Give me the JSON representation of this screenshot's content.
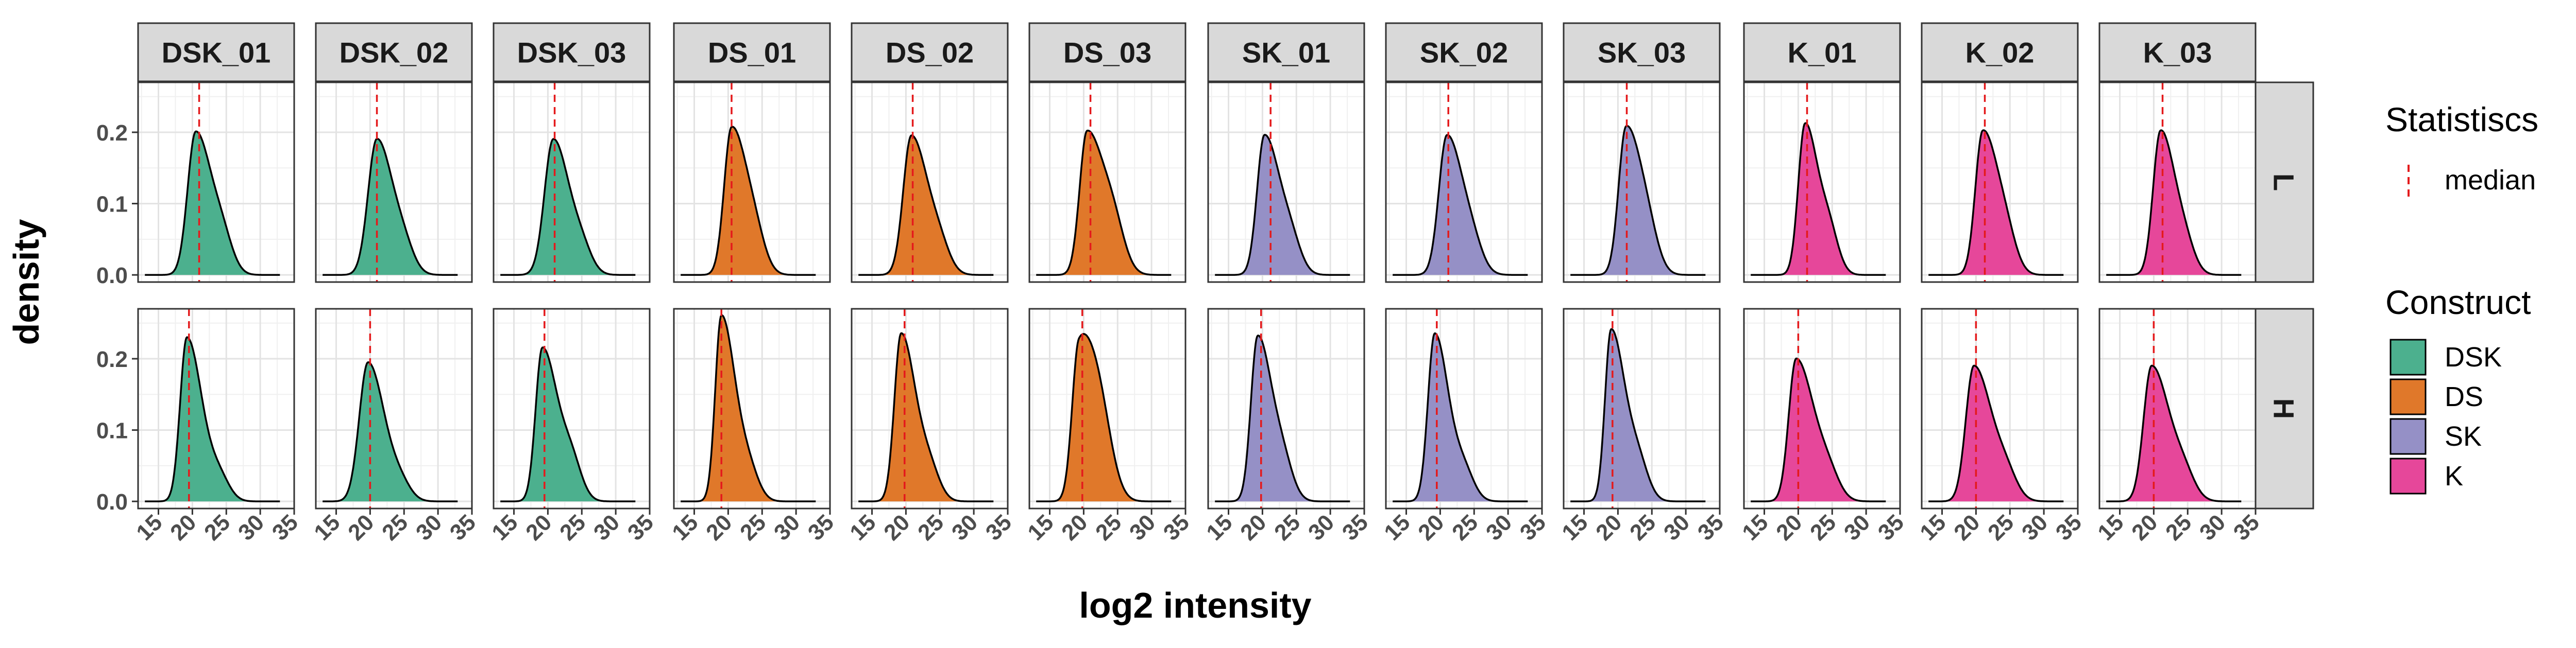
{
  "chart_data": {
    "type": "area",
    "facet_columns": [
      "DSK_01",
      "DSK_02",
      "DSK_03",
      "DS_01",
      "DS_02",
      "DS_03",
      "SK_01",
      "SK_02",
      "SK_03",
      "K_01",
      "K_02",
      "K_03"
    ],
    "facet_rows": [
      "L",
      "H"
    ],
    "column_construct": [
      "DSK",
      "DSK",
      "DSK",
      "DS",
      "DS",
      "DS",
      "SK",
      "SK",
      "SK",
      "K",
      "K",
      "K"
    ],
    "xlabel": "log2 intensity",
    "ylabel": "density",
    "xlim": [
      12,
      35
    ],
    "ylim": [
      -0.01,
      0.27
    ],
    "x_ticks": [
      15,
      20,
      25,
      30,
      35
    ],
    "y_ticks": [
      0.0,
      0.1,
      0.2
    ],
    "y_tick_labels": [
      "0.0",
      "0.1",
      "0.2"
    ],
    "x_tick_labels": [
      "15",
      "20",
      "25",
      "30",
      "35"
    ],
    "grid": true,
    "legend_position": "right",
    "legends": [
      {
        "title": "Statistiscs",
        "entries": [
          {
            "label": "median",
            "style": "dashed-line",
            "color": "#e41a1c"
          }
        ]
      },
      {
        "title": "Construct",
        "entries": [
          {
            "label": "DSK",
            "color": "#4cb08e"
          },
          {
            "label": "DS",
            "color": "#e0782a"
          },
          {
            "label": "SK",
            "color": "#9590c6"
          },
          {
            "label": "K",
            "color": "#e6479a"
          }
        ]
      }
    ],
    "colors": {
      "DSK": "#4cb08e",
      "DS": "#e0782a",
      "SK": "#9590c6",
      "K": "#e6479a",
      "median": "#e41a1c"
    },
    "panels": {
      "L": [
        {
          "median": 21.0,
          "peak_x": 20.5,
          "peak_y": 0.2,
          "sd_left": 1.2,
          "sd_right": 2.3,
          "shoulder": [
            24.5,
            0.04,
            1.5
          ]
        },
        {
          "median": 21.0,
          "peak_x": 21.0,
          "peak_y": 0.19,
          "sd_left": 1.3,
          "sd_right": 2.3,
          "shoulder": [
            25.0,
            0.03,
            1.5
          ]
        },
        {
          "median": 21.0,
          "peak_x": 20.8,
          "peak_y": 0.19,
          "sd_left": 1.3,
          "sd_right": 2.3,
          "shoulder": [
            25.0,
            0.03,
            1.5
          ]
        },
        {
          "median": 20.5,
          "peak_x": 20.5,
          "peak_y": 0.205,
          "sd_left": 1.1,
          "sd_right": 2.2,
          "shoulder": [
            24.0,
            0.04,
            1.5
          ]
        },
        {
          "median": 21.0,
          "peak_x": 20.8,
          "peak_y": 0.195,
          "sd_left": 1.2,
          "sd_right": 2.4,
          "shoulder": [
            25.0,
            0.03,
            1.5
          ]
        },
        {
          "median": 21.0,
          "peak_x": 20.5,
          "peak_y": 0.2,
          "sd_left": 1.1,
          "sd_right": 2.5,
          "shoulder": [
            24.5,
            0.05,
            1.6
          ]
        },
        {
          "median": 21.2,
          "peak_x": 20.3,
          "peak_y": 0.195,
          "sd_left": 1.1,
          "sd_right": 2.2,
          "shoulder": [
            24.2,
            0.04,
            1.5
          ]
        },
        {
          "median": 21.2,
          "peak_x": 21.0,
          "peak_y": 0.195,
          "sd_left": 1.2,
          "sd_right": 2.3,
          "shoulder": [
            24.8,
            0.03,
            1.5
          ]
        },
        {
          "median": 21.3,
          "peak_x": 21.2,
          "peak_y": 0.205,
          "sd_left": 1.1,
          "sd_right": 2.2,
          "shoulder": [
            24.5,
            0.04,
            1.5
          ]
        },
        {
          "median": 21.3,
          "peak_x": 21.0,
          "peak_y": 0.21,
          "sd_left": 1.0,
          "sd_right": 1.8,
          "shoulder": [
            24.5,
            0.06,
            1.4
          ]
        },
        {
          "median": 21.3,
          "peak_x": 21.0,
          "peak_y": 0.2,
          "sd_left": 1.1,
          "sd_right": 2.2,
          "shoulder": [
            24.5,
            0.04,
            1.5
          ]
        },
        {
          "median": 21.3,
          "peak_x": 21.0,
          "peak_y": 0.2,
          "sd_left": 1.1,
          "sd_right": 2.0,
          "shoulder": [
            24.5,
            0.04,
            1.5
          ]
        }
      ],
      "H": [
        {
          "median": 19.5,
          "peak_x": 19.2,
          "peak_y": 0.23,
          "sd_left": 1.0,
          "sd_right": 2.2,
          "shoulder": [
            24.0,
            0.03,
            1.5
          ]
        },
        {
          "median": 20.0,
          "peak_x": 19.7,
          "peak_y": 0.195,
          "sd_left": 1.3,
          "sd_right": 2.4,
          "shoulder": [
            24.5,
            0.02,
            1.5
          ]
        },
        {
          "median": 19.5,
          "peak_x": 19.2,
          "peak_y": 0.215,
          "sd_left": 1.0,
          "sd_right": 2.2,
          "shoulder": [
            23.5,
            0.05,
            1.5
          ]
        },
        {
          "median": 19.0,
          "peak_x": 19.0,
          "peak_y": 0.26,
          "sd_left": 0.9,
          "sd_right": 2.0,
          "shoulder": [
            23.0,
            0.04,
            1.5
          ]
        },
        {
          "median": 19.8,
          "peak_x": 19.3,
          "peak_y": 0.235,
          "sd_left": 1.0,
          "sd_right": 2.1,
          "shoulder": [
            23.5,
            0.04,
            1.5
          ]
        },
        {
          "median": 19.8,
          "peak_x": 19.3,
          "peak_y": 0.21,
          "sd_left": 1.0,
          "sd_right": 2.3,
          "shoulder": [
            22.5,
            0.09,
            1.8
          ]
        },
        {
          "median": 19.8,
          "peak_x": 19.3,
          "peak_y": 0.23,
          "sd_left": 1.0,
          "sd_right": 2.0,
          "shoulder": [
            23.0,
            0.05,
            1.5
          ]
        },
        {
          "median": 19.5,
          "peak_x": 19.2,
          "peak_y": 0.235,
          "sd_left": 1.0,
          "sd_right": 2.0,
          "shoulder": [
            23.5,
            0.04,
            1.5
          ]
        },
        {
          "median": 19.2,
          "peak_x": 19.0,
          "peak_y": 0.24,
          "sd_left": 0.9,
          "sd_right": 2.0,
          "shoulder": [
            23.0,
            0.05,
            1.5
          ]
        },
        {
          "median": 20.0,
          "peak_x": 19.7,
          "peak_y": 0.2,
          "sd_left": 1.1,
          "sd_right": 2.6,
          "shoulder": [
            24.5,
            0.03,
            1.6
          ]
        },
        {
          "median": 20.0,
          "peak_x": 19.7,
          "peak_y": 0.19,
          "sd_left": 1.2,
          "sd_right": 2.6,
          "shoulder": [
            24.5,
            0.03,
            1.6
          ]
        },
        {
          "median": 20.0,
          "peak_x": 19.7,
          "peak_y": 0.19,
          "sd_left": 1.2,
          "sd_right": 2.6,
          "shoulder": [
            24.5,
            0.03,
            1.6
          ]
        }
      ]
    }
  }
}
